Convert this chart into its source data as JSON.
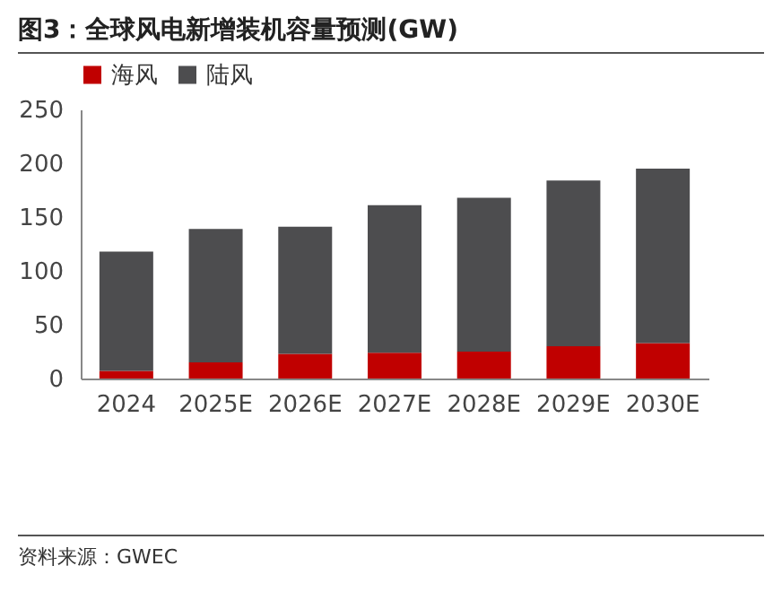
{
  "chart_data": {
    "type": "bar",
    "title": "图3：全球风电新增装机容量预测(GW)",
    "categories": [
      "2024",
      "2025E",
      "2026E",
      "2027E",
      "2028E",
      "2029E",
      "2030E"
    ],
    "series": [
      {
        "name": "海风",
        "color": "#c00000",
        "values": [
          7,
          15,
          23,
          24,
          25,
          30,
          33
        ]
      },
      {
        "name": "陆风",
        "color": "#4d4d4f",
        "values": [
          111,
          124,
          118,
          137,
          143,
          154,
          162
        ]
      }
    ],
    "stacked": true,
    "ylim": [
      0,
      250
    ],
    "yticks": [
      0,
      50,
      100,
      150,
      200,
      250
    ],
    "grid": false,
    "legend": "top",
    "annotations": [
      "资料来源：GWEC"
    ]
  }
}
